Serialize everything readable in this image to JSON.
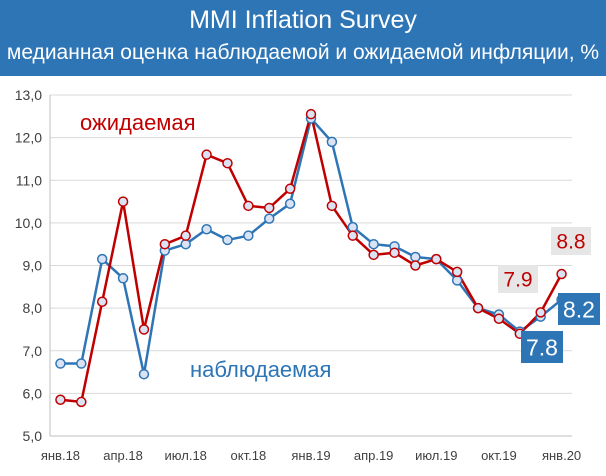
{
  "header": {
    "title": "MMI Inflation Survey",
    "subtitle": "медианная оценка наблюдаемой и ожидаемой инфляции, %"
  },
  "colors": {
    "header_bg": "#2e75b6",
    "expected": "#c00000",
    "observed": "#2e75b6",
    "point_fill": "#dae3f3",
    "label_box_expected": "#e7e6e6",
    "label_box_observed": "#2e75b6"
  },
  "chart_data": {
    "type": "line",
    "ylim": [
      5.0,
      13.0
    ],
    "yticks": [
      "5,0",
      "6,0",
      "7,0",
      "8,0",
      "9,0",
      "10,0",
      "11,0",
      "12,0",
      "13,0"
    ],
    "xticks": [
      {
        "index": 0,
        "label": "янв.18"
      },
      {
        "index": 3,
        "label": "апр.18"
      },
      {
        "index": 6,
        "label": "июл.18"
      },
      {
        "index": 9,
        "label": "окт.18"
      },
      {
        "index": 12,
        "label": "янв.19"
      },
      {
        "index": 15,
        "label": "апр.19"
      },
      {
        "index": 18,
        "label": "июл.19"
      },
      {
        "index": 21,
        "label": "окт.19"
      },
      {
        "index": 24,
        "label": "янв.20"
      }
    ],
    "grid": true,
    "series": [
      {
        "key": "expected",
        "name": "ожидаемая",
        "color": "#c00000",
        "values": [
          5.85,
          5.8,
          8.15,
          10.5,
          7.5,
          9.5,
          9.7,
          11.6,
          11.4,
          10.4,
          10.35,
          10.8,
          12.55,
          10.4,
          9.7,
          9.25,
          9.3,
          9.0,
          9.15,
          8.85,
          8.0,
          7.75,
          7.4,
          7.9,
          8.8
        ],
        "end_label": "8.8"
      },
      {
        "key": "observed",
        "name": "наблюдаемая",
        "color": "#2e75b6",
        "values": [
          6.7,
          6.7,
          9.15,
          8.7,
          6.45,
          9.35,
          9.5,
          9.85,
          9.6,
          9.7,
          10.1,
          10.45,
          12.45,
          11.9,
          9.9,
          9.5,
          9.45,
          9.2,
          9.15,
          8.65,
          8.0,
          7.85,
          7.45,
          7.8,
          8.2
        ],
        "end_label": "8.2"
      }
    ],
    "annotations": [
      {
        "text": "7.9",
        "series": "expected",
        "index": 23
      },
      {
        "text": "7.8",
        "series": "observed",
        "index": 23
      }
    ]
  }
}
